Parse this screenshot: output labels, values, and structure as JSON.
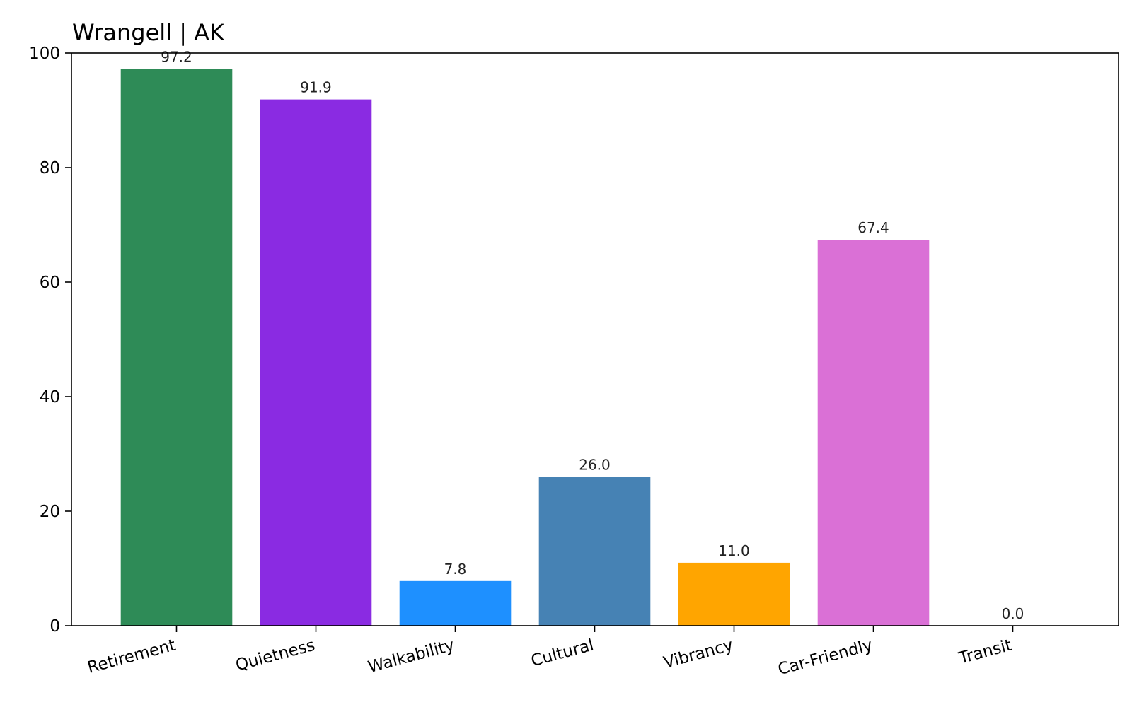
{
  "chart_data": {
    "type": "bar",
    "title": "Wrangell | AK",
    "xlabel": "",
    "ylabel": "",
    "categories": [
      "Retirement",
      "Quietness",
      "Walkability",
      "Cultural",
      "Vibrancy",
      "Car-Friendly",
      "Transit"
    ],
    "values": [
      97.2,
      91.9,
      7.8,
      26.0,
      11.0,
      67.4,
      0.0
    ],
    "value_labels": [
      "97.2",
      "91.9",
      "7.8",
      "26.0",
      "11.0",
      "67.4",
      "0.0"
    ],
    "colors": [
      "#2e8b57",
      "#8a2be2",
      "#1e90ff",
      "#4682b4",
      "#ffa500",
      "#da70d6",
      "#808080"
    ],
    "ylim": [
      0,
      100
    ],
    "yticks": [
      0,
      20,
      40,
      60,
      80,
      100
    ],
    "ytick_labels": [
      "0",
      "20",
      "40",
      "60",
      "80",
      "100"
    ],
    "grid": false,
    "legend": "none"
  }
}
